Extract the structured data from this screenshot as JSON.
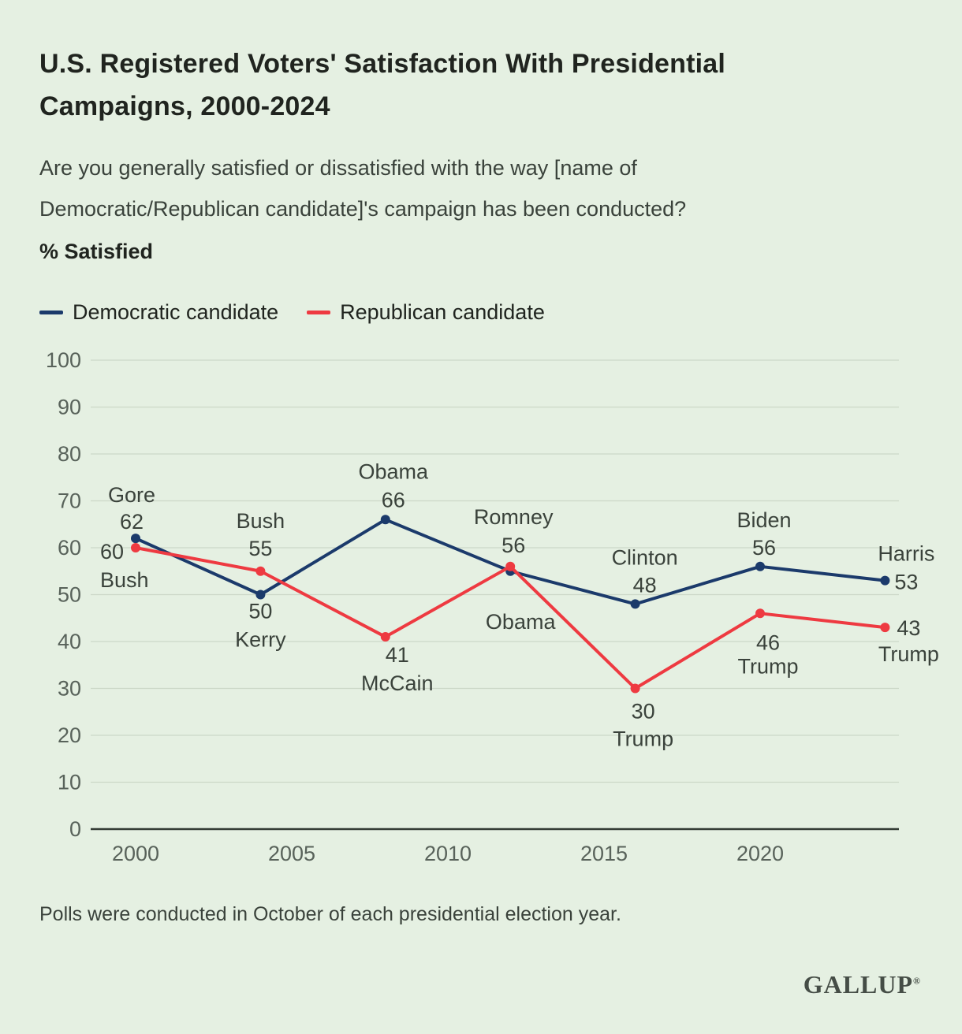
{
  "colors": {
    "background": "#e5f0e2",
    "democratic": "#1b3a6b",
    "republican": "#ee3a41",
    "grid": "#ccd8c8",
    "axis": "#333b34",
    "tick_text": "#58625a",
    "annotation_text": "#3a423b"
  },
  "header": {
    "title": "U.S. Registered Voters' Satisfaction With Presidential\nCampaigns, 2000-2024",
    "subtitle": "Are you generally satisfied or dissatisfied with the way [name of\nDemocratic/Republican candidate]'s campaign has been conducted?",
    "metric": "% Satisfied"
  },
  "legend": {
    "items": [
      {
        "label": "Democratic candidate",
        "color": "#1b3a6b"
      },
      {
        "label": "Republican candidate",
        "color": "#ee3a41"
      }
    ]
  },
  "chart_data": {
    "type": "line",
    "title": "U.S. Registered Voters' Satisfaction With Presidential Campaigns, 2000-2024",
    "x": [
      2000,
      2004,
      2008,
      2012,
      2016,
      2020,
      2024
    ],
    "series": [
      {
        "id": "dem",
        "name": "Democratic candidate",
        "color": "#1b3a6b",
        "values": [
          62,
          50,
          66,
          55,
          48,
          56,
          53
        ],
        "candidates": [
          "Gore",
          "Kerry",
          "Obama",
          "Obama",
          "Clinton",
          "Biden",
          "Harris"
        ]
      },
      {
        "id": "rep",
        "name": "Republican candidate",
        "color": "#ee3a41",
        "values": [
          60,
          55,
          41,
          56,
          30,
          46,
          43
        ],
        "candidates": [
          "Bush",
          "Bush",
          "McCain",
          "Romney",
          "Trump",
          "Trump",
          "Trump"
        ]
      }
    ],
    "ylim": [
      0,
      100
    ],
    "yticks": [
      0,
      10,
      20,
      30,
      40,
      50,
      60,
      70,
      80,
      90,
      100
    ],
    "xticks": [
      2000,
      2005,
      2010,
      2015,
      2020
    ],
    "grid": true,
    "legend_position": "top-left",
    "point_annotations": [
      {
        "series": "dem",
        "year": 2000,
        "lines": [
          "Gore",
          "62"
        ],
        "anchor": "middle",
        "dx": -5,
        "dy": [
          -46,
          -12
        ]
      },
      {
        "series": "rep",
        "year": 2000,
        "lines": [
          "60",
          "Bush"
        ],
        "anchor": "start",
        "dx": -45,
        "dy": [
          14,
          50
        ]
      },
      {
        "series": "rep",
        "year": 2004,
        "lines": [
          "Bush",
          "55"
        ],
        "anchor": "middle",
        "dx": 0,
        "dy": [
          -55,
          -20
        ]
      },
      {
        "series": "dem",
        "year": 2004,
        "lines": [
          "50",
          "Kerry"
        ],
        "anchor": "middle",
        "dx": 0,
        "dy": [
          30,
          66
        ]
      },
      {
        "series": "dem",
        "year": 2008,
        "lines": [
          "Obama",
          "66"
        ],
        "anchor": "middle",
        "dx": 10,
        "dy": [
          -52,
          -16
        ]
      },
      {
        "series": "rep",
        "year": 2008,
        "lines": [
          "41",
          "McCain"
        ],
        "anchor": "middle",
        "dx": 15,
        "dy": [
          32,
          68
        ]
      },
      {
        "series": "rep",
        "year": 2012,
        "lines": [
          "Romney",
          "56"
        ],
        "anchor": "middle",
        "dx": 4,
        "dy": [
          -54,
          -18
        ]
      },
      {
        "series": "dem",
        "year": 2012,
        "lines": [
          "Obama"
        ],
        "anchor": "middle",
        "dx": 13,
        "dy": [
          73
        ]
      },
      {
        "series": "dem",
        "year": 2016,
        "lines": [
          "Clinton",
          "48"
        ],
        "anchor": "middle",
        "dx": 12,
        "dy": [
          -50,
          -15
        ]
      },
      {
        "series": "rep",
        "year": 2016,
        "lines": [
          "30",
          "Trump"
        ],
        "anchor": "middle",
        "dx": 10,
        "dy": [
          38,
          73
        ]
      },
      {
        "series": "dem",
        "year": 2020,
        "lines": [
          "Biden",
          "56"
        ],
        "anchor": "middle",
        "dx": 5,
        "dy": [
          -50,
          -15
        ]
      },
      {
        "series": "rep",
        "year": 2020,
        "lines": [
          "46",
          "Trump"
        ],
        "anchor": "middle",
        "dx": 10,
        "dy": [
          46,
          76
        ]
      },
      {
        "series": "dem",
        "year": 2024,
        "lines": [
          "Harris",
          "53"
        ],
        "anchor": "middle",
        "dx": 27,
        "dy": [
          -25,
          11
        ]
      },
      {
        "series": "rep",
        "year": 2024,
        "lines": [
          "43",
          "Trump"
        ],
        "anchor": "middle",
        "dx": 30,
        "dy": [
          10,
          43
        ]
      }
    ]
  },
  "footer": {
    "note": "Polls were conducted in October of each presidential election year.",
    "brand": "GALLUP",
    "brand_mark": "®"
  }
}
